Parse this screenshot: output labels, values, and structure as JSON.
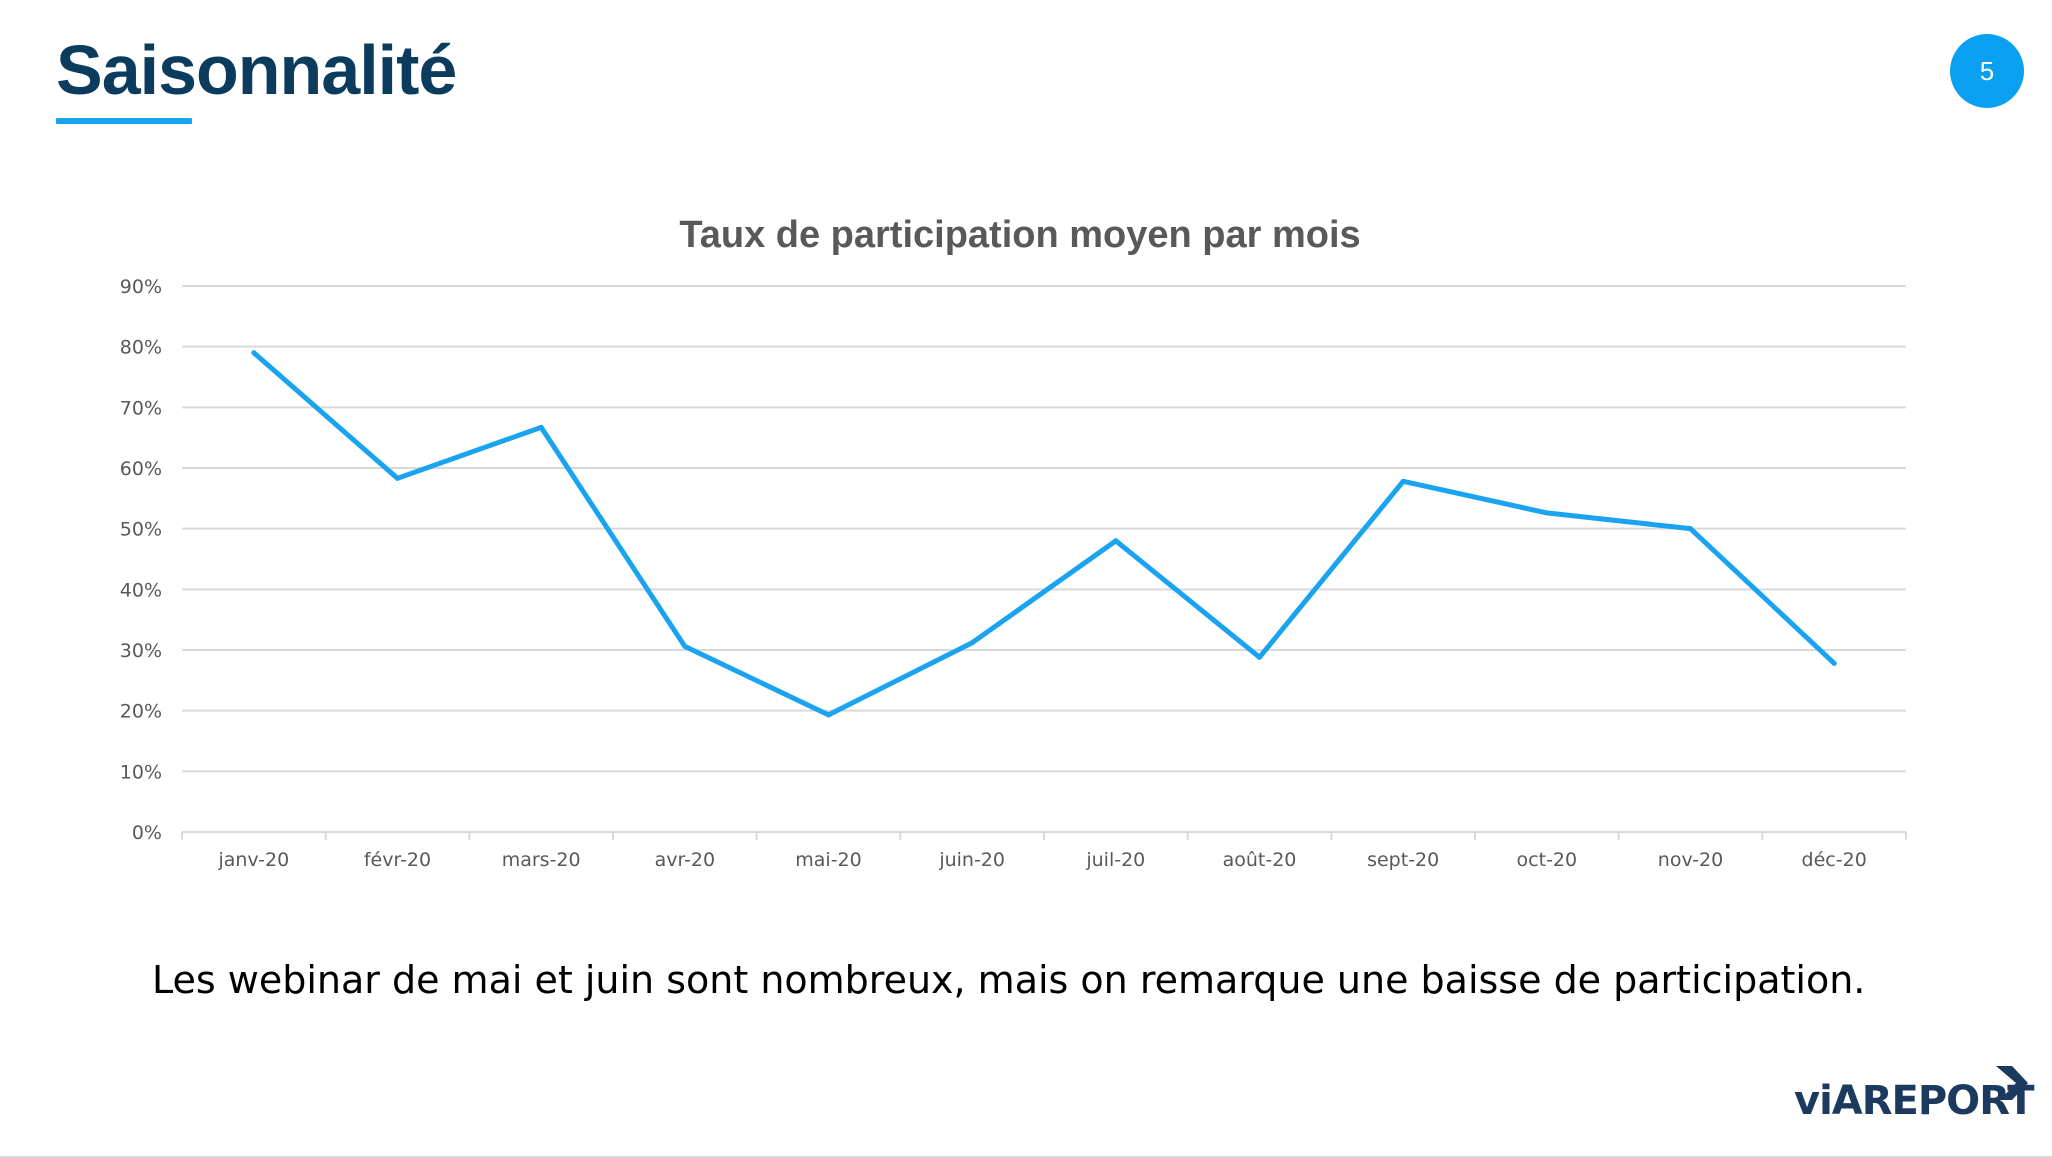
{
  "slide": {
    "title": "Saisonnalité",
    "page_number": "5",
    "caption": "Les webinar de mai et juin sont nombreux, mais on remarque une baisse de participation.",
    "logo_text": "viAREPORT"
  },
  "colors": {
    "title": "#0b3c5d",
    "accent": "#1aa3f0",
    "series": "#1aa3f0",
    "gridline": "#d9d9d9",
    "axis_text": "#595959"
  },
  "chart_data": {
    "type": "line",
    "title": "Taux de participation moyen par mois",
    "xlabel": "",
    "ylabel": "",
    "categories": [
      "janv-20",
      "févr-20",
      "mars-20",
      "avr-20",
      "mai-20",
      "juin-20",
      "juil-20",
      "août-20",
      "sept-20",
      "oct-20",
      "nov-20",
      "déc-20"
    ],
    "series": [
      {
        "values": [
          79,
          58.3,
          66.7,
          30.6,
          19.3,
          31.2,
          48,
          28.8,
          57.8,
          52.6,
          50,
          27.8
        ]
      }
    ],
    "ylim": [
      0,
      90
    ],
    "yticks": [
      0,
      10,
      20,
      30,
      40,
      50,
      60,
      70,
      80,
      90
    ],
    "ytick_labels": [
      "0%",
      "10%",
      "20%",
      "30%",
      "40%",
      "50%",
      "60%",
      "70%",
      "80%",
      "90%"
    ],
    "grid": true,
    "legend": "none"
  }
}
